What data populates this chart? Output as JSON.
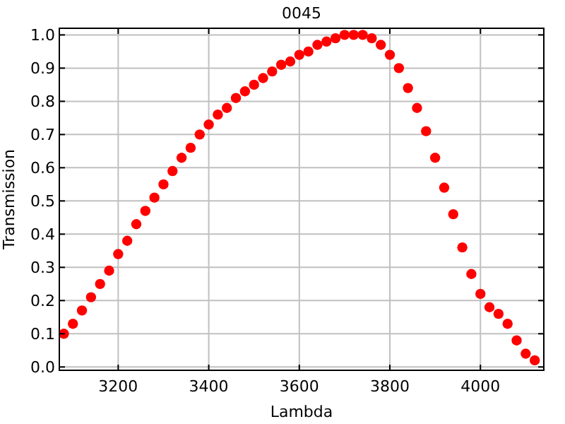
{
  "chart_data": {
    "type": "scatter",
    "title": "0045",
    "xlabel": "Lambda",
    "ylabel": "Transmission",
    "x": [
      3080,
      3100,
      3120,
      3140,
      3160,
      3180,
      3200,
      3220,
      3240,
      3260,
      3280,
      3300,
      3320,
      3340,
      3360,
      3380,
      3400,
      3420,
      3440,
      3460,
      3480,
      3500,
      3520,
      3540,
      3560,
      3580,
      3600,
      3620,
      3640,
      3660,
      3680,
      3700,
      3720,
      3740,
      3760,
      3780,
      3800,
      3820,
      3840,
      3860,
      3880,
      3900,
      3920,
      3940,
      3960,
      3980,
      4000,
      4020,
      4040,
      4060,
      4080,
      4100,
      4120
    ],
    "series": [
      {
        "color": "#ff0000",
        "values": [
          0.1,
          0.13,
          0.17,
          0.21,
          0.25,
          0.29,
          0.34,
          0.38,
          0.43,
          0.47,
          0.51,
          0.55,
          0.59,
          0.63,
          0.66,
          0.7,
          0.73,
          0.76,
          0.78,
          0.81,
          0.83,
          0.85,
          0.87,
          0.89,
          0.91,
          0.92,
          0.94,
          0.95,
          0.97,
          0.98,
          0.99,
          1.0,
          1.0,
          1.0,
          0.99,
          0.97,
          0.94,
          0.9,
          0.84,
          0.78,
          0.71,
          0.63,
          0.54,
          0.46,
          0.36,
          0.28,
          0.22,
          0.18,
          0.16,
          0.13,
          0.08,
          0.04,
          0.02
        ]
      }
    ],
    "xlim": [
      3070,
      4140
    ],
    "xticks": [
      3200,
      3400,
      3600,
      3800,
      4000
    ],
    "ylim": [
      -0.01,
      1.02
    ],
    "yticks": [
      {
        "value": 0,
        "label": "0.0"
      },
      0.1,
      0.2,
      0.3,
      0.4,
      0.5,
      0.6,
      0.7,
      0.8,
      0.9,
      {
        "value": 1,
        "label": "1.0"
      }
    ],
    "grid": true,
    "marker": "circle"
  }
}
